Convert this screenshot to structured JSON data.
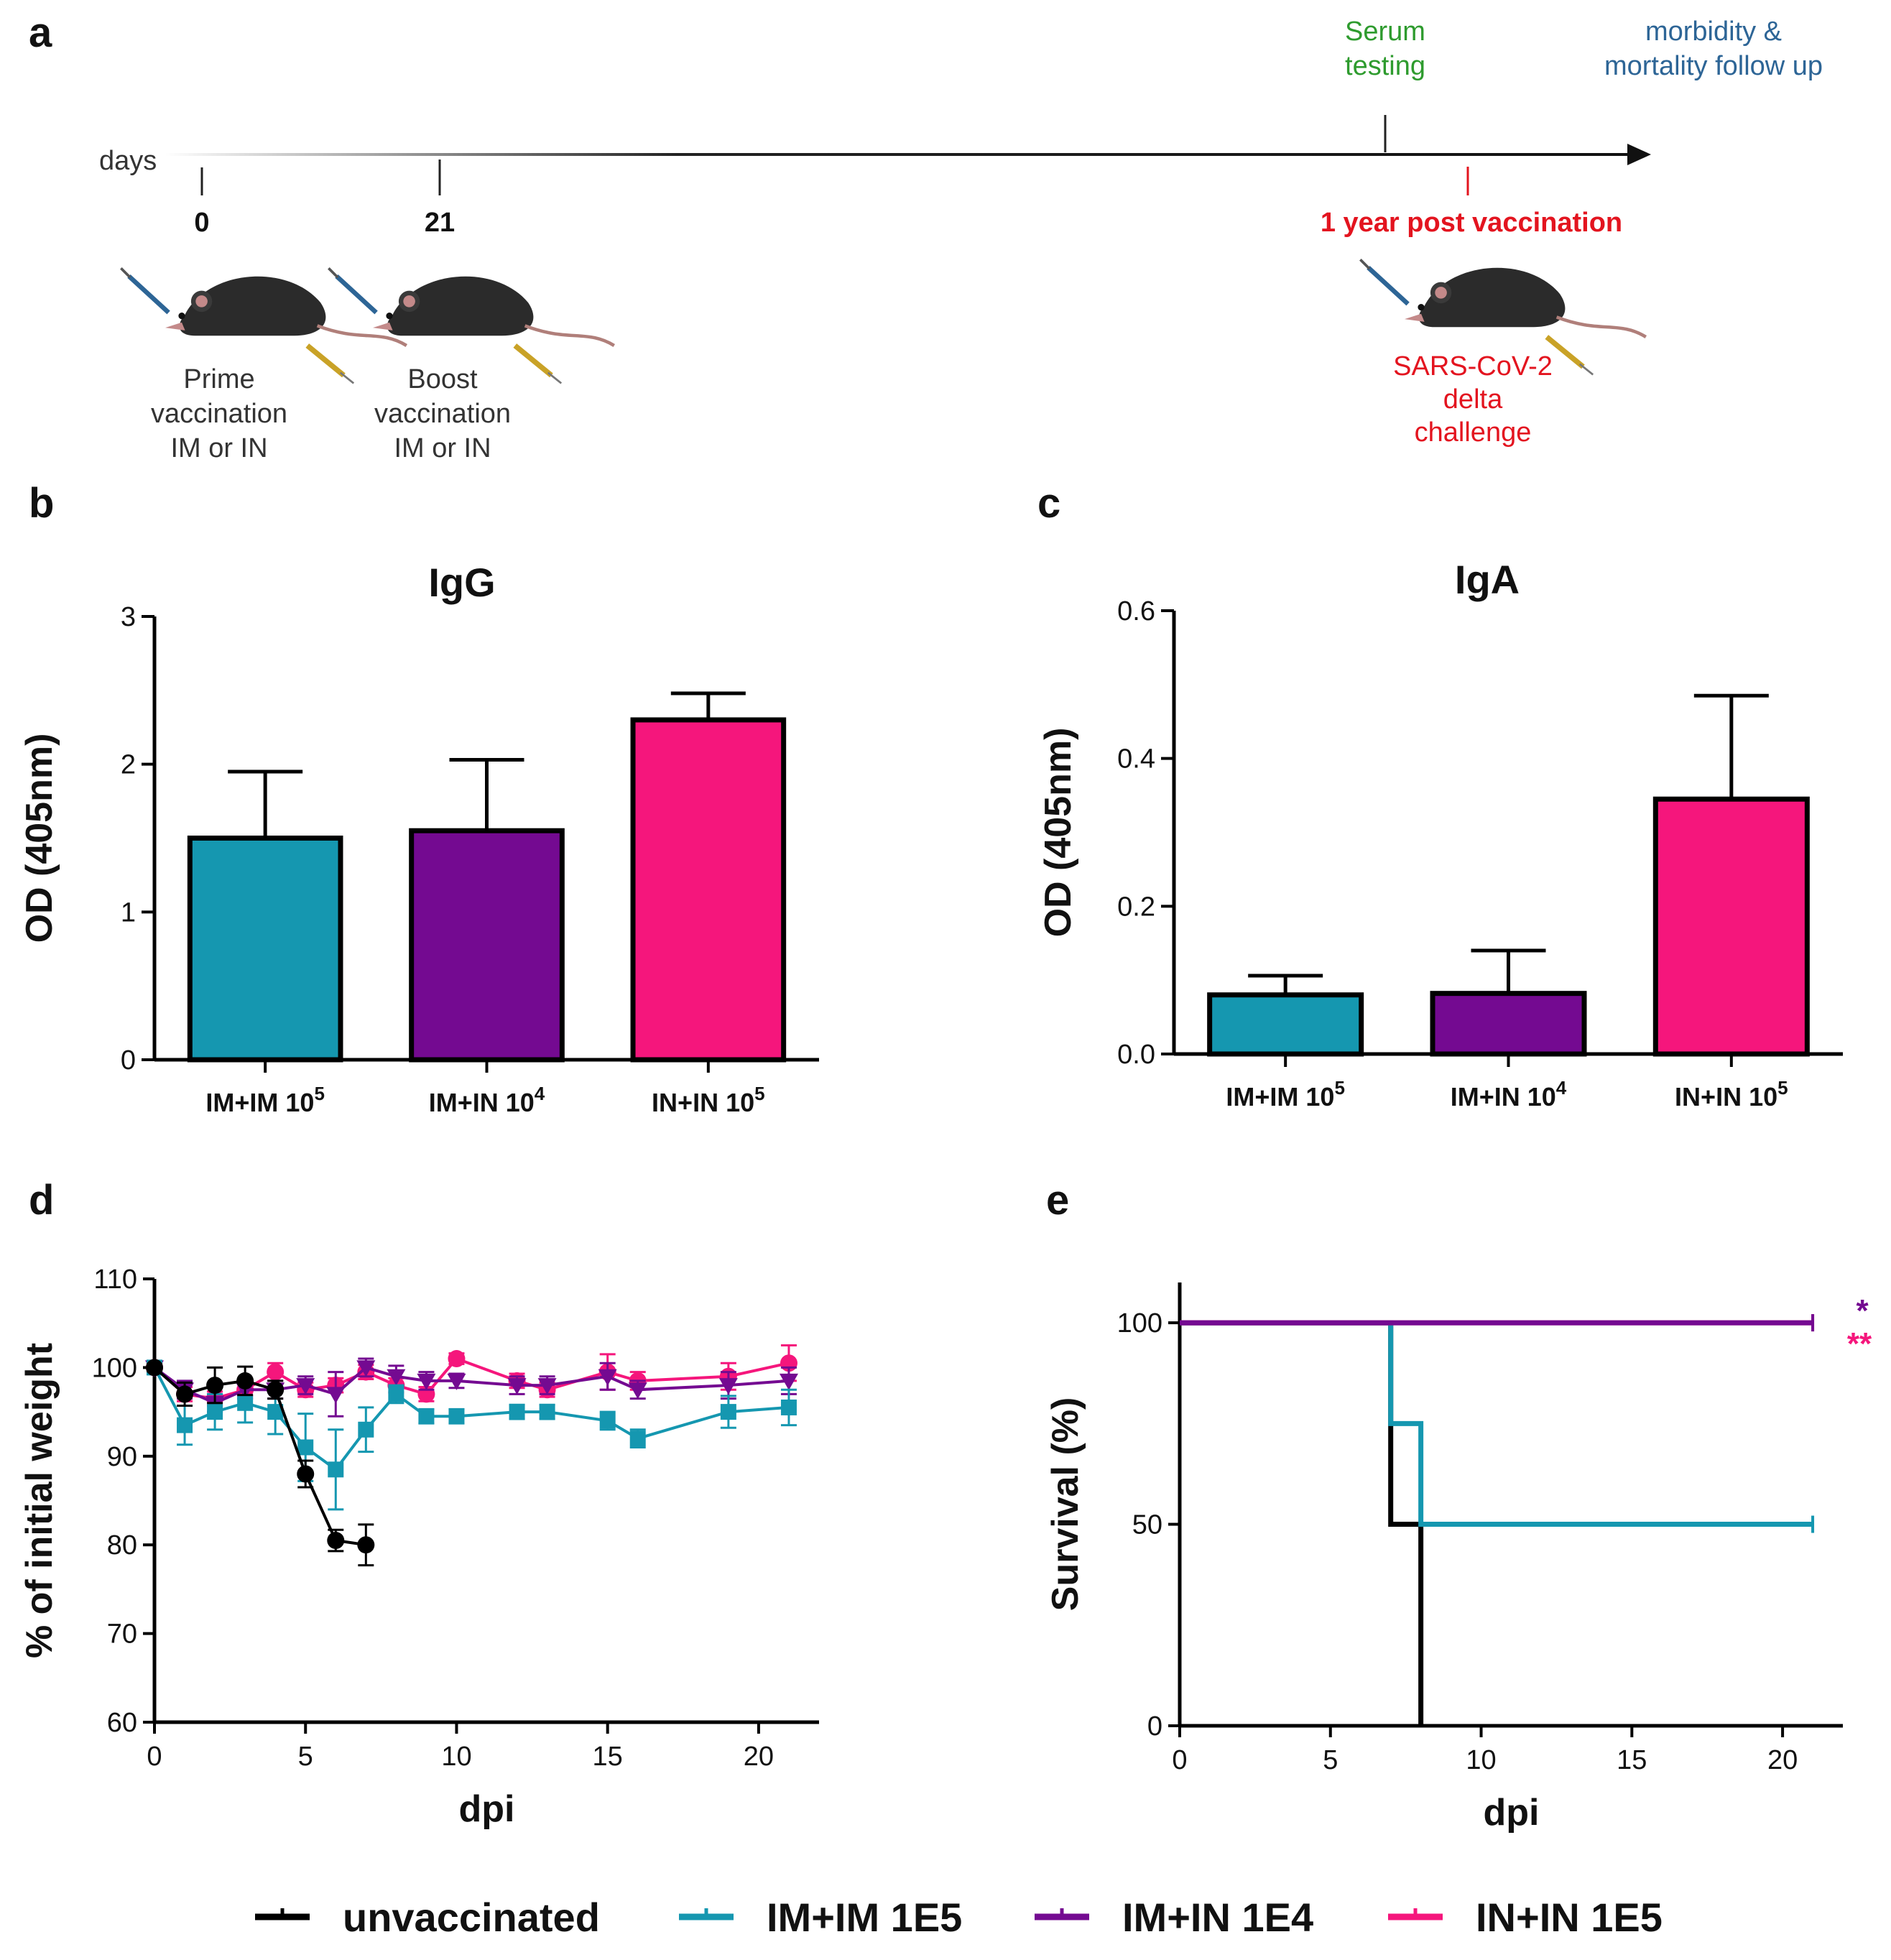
{
  "colors": {
    "unvaccinated": "#000000",
    "im_im": "#1597B0",
    "im_in": "#740A91",
    "in_in": "#F5167C",
    "green": "#2E9B2E",
    "blue": "#2D6596",
    "red": "#E3141F"
  },
  "panels": {
    "a": "a",
    "b": "b",
    "c": "c",
    "d": "d",
    "e": "e"
  },
  "timeline": {
    "axis_label": "days",
    "day0": "0",
    "day21": "21",
    "serum_line1": "Serum",
    "serum_line2": "testing",
    "followup_line1": "morbidity &",
    "followup_line2": "mortality follow up",
    "one_year": "1 year post vaccination",
    "prime": [
      "Prime",
      "vaccination",
      "IM or IN"
    ],
    "boost": [
      "Boost",
      "vaccination",
      "IM or IN"
    ],
    "challenge": [
      "SARS-CoV-2",
      "delta",
      "challenge"
    ]
  },
  "legend": [
    {
      "label": "unvaccinated",
      "color_key": "unvaccinated"
    },
    {
      "label": "IM+IM 1E5",
      "color_key": "im_im"
    },
    {
      "label": "IM+IN 1E4",
      "color_key": "im_in"
    },
    {
      "label": "IN+IN 1E5",
      "color_key": "in_in"
    }
  ],
  "stars": {
    "im_in": "*",
    "in_in": "**"
  },
  "chart_data": [
    {
      "id": "b",
      "type": "bar",
      "title": "IgG",
      "ylabel": "OD (405nm)",
      "xlabel": "",
      "ylim": [
        0,
        3
      ],
      "yticks": [
        0,
        1,
        2,
        3
      ],
      "ytick_labels": [
        "0",
        "1",
        "2",
        "3"
      ],
      "categories": [
        {
          "base": "IM+IM 10",
          "exp": "5"
        },
        {
          "base": "IM+IN 10",
          "exp": "4"
        },
        {
          "base": "IN+IN 10",
          "exp": "5"
        }
      ],
      "values": [
        1.5,
        1.55,
        2.3
      ],
      "errors": [
        0.45,
        0.48,
        0.18
      ],
      "color_keys": [
        "im_im",
        "im_in",
        "in_in"
      ]
    },
    {
      "id": "c",
      "type": "bar",
      "title": "IgA",
      "ylabel": "OD (405nm)",
      "xlabel": "",
      "ylim": [
        0,
        0.6
      ],
      "yticks": [
        0,
        0.2,
        0.4,
        0.6
      ],
      "ytick_labels": [
        "0.0",
        "0.2",
        "0.4",
        "0.6"
      ],
      "categories": [
        {
          "base": "IM+IM 10",
          "exp": "5"
        },
        {
          "base": "IM+IN 10",
          "exp": "4"
        },
        {
          "base": "IN+IN 10",
          "exp": "5"
        }
      ],
      "values": [
        0.08,
        0.082,
        0.345
      ],
      "errors": [
        0.026,
        0.058,
        0.14
      ],
      "color_keys": [
        "im_im",
        "im_in",
        "in_in"
      ]
    },
    {
      "id": "d",
      "type": "line",
      "title": "",
      "xlabel": "dpi",
      "ylabel": "% of initial weight",
      "xlim": [
        0,
        22
      ],
      "ylim": [
        60,
        110
      ],
      "xticks": [
        0,
        5,
        10,
        15,
        20
      ],
      "xtick_labels": [
        "0",
        "5",
        "10",
        "15",
        "20"
      ],
      "yticks": [
        60,
        70,
        80,
        90,
        100,
        110
      ],
      "ytick_labels": [
        "60",
        "70",
        "80",
        "90",
        "100",
        "110"
      ],
      "series": [
        {
          "name": "IN+IN 1E5",
          "color_key": "in_in",
          "marker": "circle",
          "x": [
            0,
            1,
            2,
            3,
            4,
            5,
            6,
            7,
            8,
            9,
            10,
            12,
            13,
            15,
            16,
            19,
            21
          ],
          "y": [
            100,
            97,
            96.5,
            97.5,
            99.5,
            97.5,
            98,
            99.5,
            98,
            97,
            101,
            98.5,
            97.5,
            99.5,
            98.5,
            99,
            100.5
          ],
          "err": [
            0.5,
            0.8,
            0.8,
            0.7,
            1.0,
            0.8,
            0.8,
            0.8,
            0.8,
            0.8,
            0.6,
            0.8,
            0.8,
            2.0,
            1.0,
            1.5,
            2.0
          ]
        },
        {
          "name": "IM+IN 1E4",
          "color_key": "im_in",
          "marker": "triangle-down",
          "x": [
            0,
            1,
            2,
            3,
            4,
            5,
            6,
            7,
            8,
            9,
            10,
            12,
            13,
            15,
            16,
            19,
            21
          ],
          "y": [
            100,
            97.5,
            96,
            97.5,
            97.5,
            98,
            97,
            100,
            99,
            98.5,
            98.5,
            98,
            98,
            99,
            97.5,
            98,
            98.5
          ],
          "err": [
            0.5,
            1.0,
            1.0,
            1.0,
            1.0,
            1.0,
            2.5,
            1.0,
            1.2,
            1.0,
            0.8,
            1.0,
            1.0,
            1.5,
            1.0,
            1.5,
            1.5
          ]
        },
        {
          "name": "IM+IM 1E5",
          "color_key": "im_im",
          "marker": "square",
          "x": [
            0,
            1,
            2,
            3,
            4,
            5,
            6,
            7,
            8,
            9,
            10,
            12,
            13,
            15,
            16,
            19,
            21
          ],
          "y": [
            100,
            93.5,
            95,
            96,
            95,
            91,
            88.5,
            93,
            97,
            94.5,
            94.5,
            95,
            95,
            94,
            92,
            95,
            95.5
          ],
          "err": [
            0.5,
            2.2,
            2.0,
            2.2,
            2.5,
            3.8,
            4.5,
            2.5,
            1.0,
            0.8,
            0.8,
            0.8,
            0.8,
            1.0,
            1.0,
            1.8,
            2.0
          ]
        },
        {
          "name": "unvaccinated",
          "color_key": "unvaccinated",
          "marker": "circle",
          "x": [
            0,
            1,
            2,
            3,
            4,
            5,
            6,
            7
          ],
          "y": [
            100,
            97,
            98,
            98.5,
            97.5,
            88,
            80.5,
            80
          ],
          "err": [
            0.4,
            1.3,
            2.0,
            1.6,
            1.0,
            1.5,
            1.2,
            2.3
          ]
        }
      ]
    },
    {
      "id": "e",
      "type": "line",
      "title": "",
      "xlabel": "dpi",
      "ylabel": "Survival (%)",
      "xlim": [
        0,
        22
      ],
      "ylim": [
        0,
        110
      ],
      "xticks": [
        0,
        5,
        10,
        15,
        20
      ],
      "xtick_labels": [
        "0",
        "5",
        "10",
        "15",
        "20"
      ],
      "yticks": [
        0,
        50,
        100
      ],
      "ytick_labels": [
        "0",
        "50",
        "100"
      ],
      "series": [
        {
          "name": "unvaccinated",
          "color_key": "unvaccinated",
          "x": [
            0,
            7,
            7,
            8,
            8
          ],
          "y": [
            100,
            100,
            50,
            50,
            0
          ]
        },
        {
          "name": "IM+IM 1E5",
          "color_key": "im_im",
          "x": [
            0,
            7,
            7,
            8,
            8,
            21
          ],
          "y": [
            100,
            100,
            75,
            75,
            50,
            50
          ]
        },
        {
          "name": "IN+IN 1E5",
          "color_key": "in_in",
          "x": [
            0,
            21
          ],
          "y": [
            100,
            100
          ]
        },
        {
          "name": "IM+IN 1E4",
          "color_key": "im_in",
          "x": [
            0,
            21
          ],
          "y": [
            100,
            100
          ]
        }
      ]
    }
  ]
}
